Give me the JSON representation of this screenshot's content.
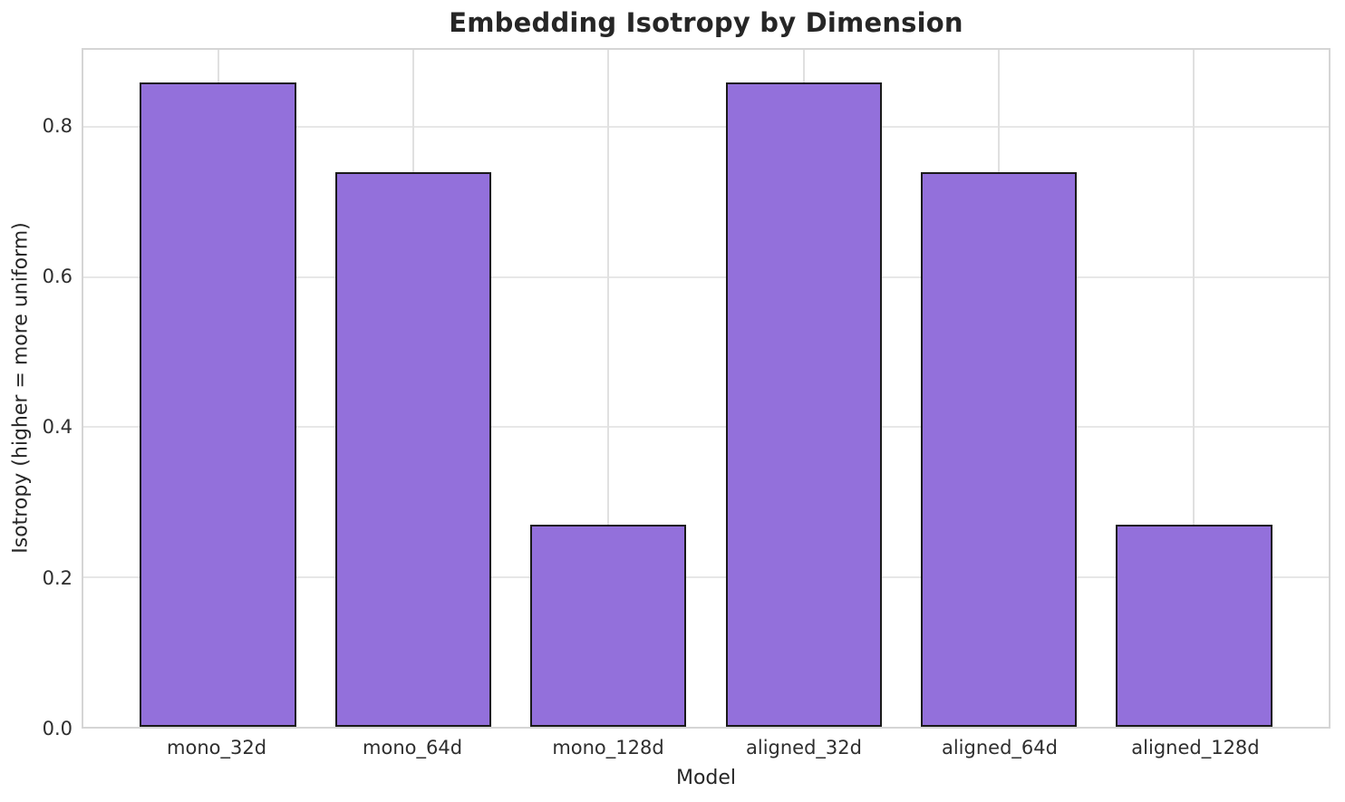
{
  "chart_data": {
    "type": "bar",
    "title": "Embedding Isotropy by Dimension",
    "xlabel": "Model",
    "ylabel": "Isotropy (higher = more uniform)",
    "categories": [
      "mono_32d",
      "mono_64d",
      "mono_128d",
      "aligned_32d",
      "aligned_64d",
      "aligned_128d"
    ],
    "values": [
      0.86,
      0.74,
      0.27,
      0.86,
      0.74,
      0.27
    ],
    "yticks": [
      0.0,
      0.2,
      0.4,
      0.6,
      0.8
    ],
    "ylim": [
      0,
      0.903
    ],
    "xlim": [
      -0.69,
      5.69
    ],
    "bar_width": 0.8,
    "grid": true,
    "legend_position": "none",
    "bar_color": "#9370DB",
    "bar_edge_color": "#1a1a1a",
    "grid_color": "#e7e7e7",
    "spine_color": "#d5d5d5",
    "background_color": "#ffffff"
  }
}
